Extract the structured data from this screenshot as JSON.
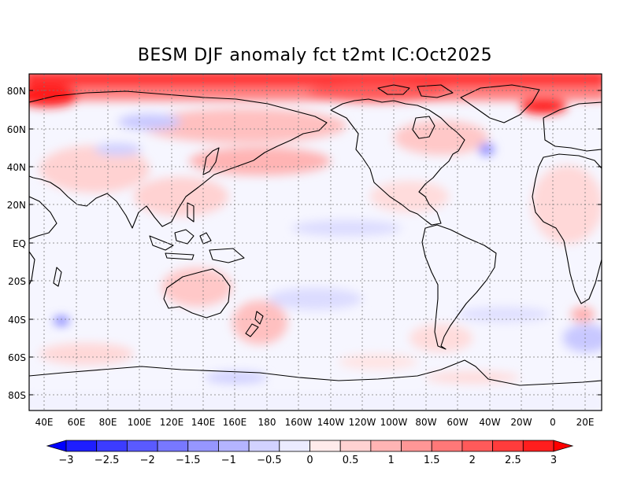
{
  "map": {
    "title": "BESM  DJF anomaly fct t2mt IC:Oct2025",
    "lat_labels": [
      "80N",
      "60N",
      "40N",
      "20N",
      "EQ",
      "20S",
      "40S",
      "60S",
      "80S"
    ],
    "lon_labels": [
      "40E",
      "60E",
      "80E",
      "100E",
      "120E",
      "140E",
      "160E",
      "180",
      "160W",
      "140W",
      "120W",
      "100W",
      "80W",
      "60W",
      "40W",
      "20W",
      "0",
      "20E"
    ],
    "colorbar": {
      "labels": [
        "−3",
        "−2.5",
        "−2",
        "−1.5",
        "−1",
        "−0.5",
        "0",
        "0.5",
        "1",
        "1.5",
        "2",
        "2.5",
        "3"
      ],
      "colors": [
        "#1e1eff",
        "#3c3cff",
        "#5a5aff",
        "#7878ff",
        "#9696ff",
        "#b4b4ff",
        "#d2d2ff",
        "#ebebff",
        "#ffebeb",
        "#ffd2d2",
        "#ffb4b4",
        "#ff9696",
        "#ff7878",
        "#ff5a5a",
        "#ff3c3c",
        "#ff1e1e"
      ],
      "under_color": "#0000ff",
      "over_color": "#ff0000"
    }
  }
}
